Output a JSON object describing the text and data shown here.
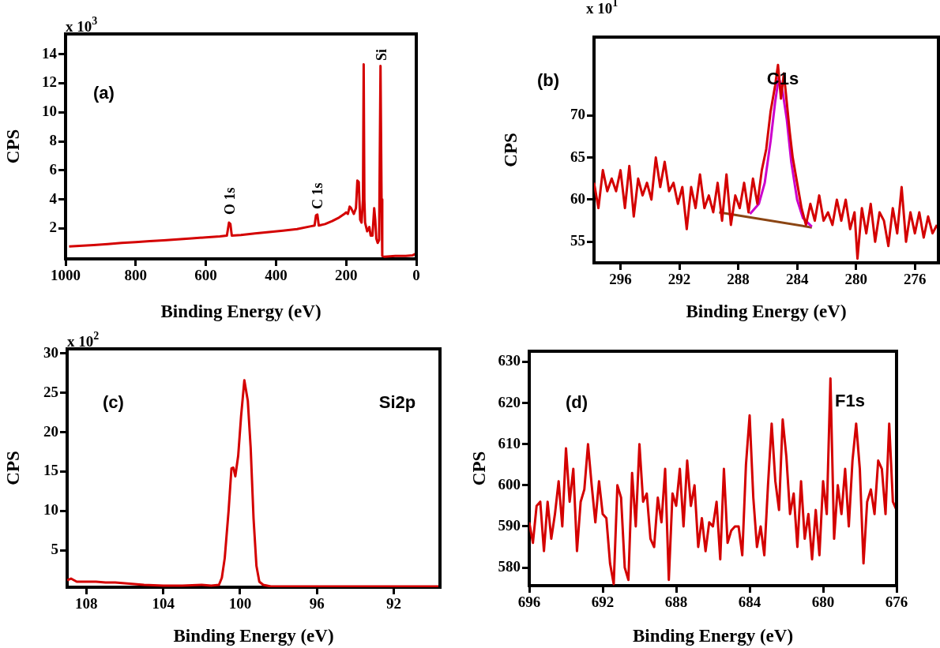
{
  "chart_data": [
    {
      "type": "line",
      "xlabel": "Binding Energy (eV)",
      "ylabel": "CPS",
      "xlim": [
        1000,
        0
      ],
      "xticks": [
        1000,
        800,
        600,
        400,
        200,
        0
      ],
      "ylim": [
        -0.1,
        15.4
      ],
      "yticks": [
        2,
        4,
        6,
        8,
        10,
        12,
        14
      ],
      "grid": false,
      "annotations": [
        "(a)",
        "x 10$^{3}$",
        "O 1s",
        "C 1s",
        "Si"
      ],
      "series": [
        {
          "color": "#d40000",
          "x": [
            990,
            960,
            920,
            880,
            840,
            800,
            760,
            720,
            680,
            640,
            600,
            560,
            540,
            534,
            530,
            526,
            500,
            460,
            420,
            380,
            340,
            300,
            290,
            286,
            282,
            278,
            260,
            240,
            220,
            205,
            200,
            195,
            190,
            186,
            182,
            178,
            172,
            168,
            164,
            160,
            156,
            152,
            150,
            148,
            146,
            140,
            134,
            130,
            125,
            120,
            117,
            114,
            110,
            106,
            102,
            99,
            97,
            90,
            60,
            30,
            10,
            2,
            0
          ],
          "values": [
            0.75,
            0.8,
            0.85,
            0.92,
            1.0,
            1.05,
            1.12,
            1.18,
            1.25,
            1.32,
            1.38,
            1.45,
            1.5,
            2.4,
            2.3,
            1.5,
            1.55,
            1.65,
            1.75,
            1.85,
            1.95,
            2.15,
            2.2,
            2.9,
            2.95,
            2.2,
            2.3,
            2.5,
            2.75,
            3.0,
            3.1,
            3.0,
            3.5,
            3.4,
            3.2,
            3.0,
            3.4,
            5.3,
            5.2,
            2.6,
            2.4,
            4,
            13.3,
            4,
            2.4,
            1.8,
            2.1,
            1.5,
            1.5,
            3.4,
            2.6,
            1.3,
            1.0,
            1.2,
            13.2,
            4,
            0.1,
            0.05,
            0.1,
            0.1,
            0.15,
            0.25,
            0.2
          ]
        }
      ]
    },
    {
      "type": "line",
      "xlabel": "Binding Energy (eV)",
      "ylabel": "CPS",
      "xlim": [
        297.8,
        274.4
      ],
      "xticks": [
        296,
        292,
        288,
        284,
        280,
        276
      ],
      "ylim": [
        52.5,
        79.3
      ],
      "yticks": [
        55,
        60,
        65,
        70
      ],
      "grid": false,
      "annotations": [
        "(b)",
        "x 10$^{1}$",
        "C1s"
      ],
      "series": [
        {
          "color": "#d40000",
          "x": [
            297.8,
            297.5,
            297.2,
            296.9,
            296.6,
            296.3,
            296.0,
            295.7,
            295.4,
            295.1,
            294.8,
            294.5,
            294.2,
            293.9,
            293.6,
            293.3,
            293.0,
            292.7,
            292.4,
            292.1,
            291.8,
            291.5,
            291.2,
            290.9,
            290.6,
            290.3,
            290.0,
            289.7,
            289.4,
            289.1,
            288.8,
            288.5,
            288.2,
            287.9,
            287.6,
            287.3,
            287.0,
            286.7,
            286.4,
            286.1,
            285.8,
            285.5,
            285.3,
            285.1,
            284.9,
            284.7,
            284.5,
            284.3,
            284.0,
            283.7,
            283.4,
            283.1,
            282.8,
            282.5,
            282.2,
            281.9,
            281.6,
            281.3,
            281.0,
            280.7,
            280.4,
            280.1,
            279.9,
            279.6,
            279.3,
            279.0,
            278.7,
            278.4,
            278.1,
            277.8,
            277.5,
            277.2,
            276.9,
            276.6,
            276.3,
            276.0,
            275.7,
            275.4,
            275.1,
            274.8,
            274.5
          ],
          "values": [
            62,
            59,
            63.5,
            61,
            62.5,
            61,
            63.5,
            59,
            64,
            58,
            62.5,
            60.5,
            62,
            60,
            65,
            61.5,
            64.5,
            61,
            62,
            59.5,
            61.5,
            56.5,
            61.5,
            59,
            63,
            59,
            60.5,
            58.5,
            62,
            57.5,
            63,
            57,
            60.5,
            59,
            62,
            58.5,
            62.5,
            59.5,
            63.5,
            66,
            70.5,
            73.5,
            76,
            72,
            75,
            71.5,
            68,
            65,
            62,
            59,
            57,
            59.5,
            57.5,
            60.5,
            57.5,
            58.5,
            57,
            60,
            57.5,
            60,
            56.5,
            58.5,
            53,
            59,
            56,
            59.5,
            55,
            58.5,
            57.5,
            54.5,
            59,
            56,
            61.5,
            55,
            58.5,
            56,
            58.5,
            55.5,
            58,
            56,
            57
          ]
        },
        {
          "color": "#cc00cc",
          "x": [
            287.2,
            286.6,
            286.2,
            285.8,
            285.5,
            285.25,
            285.0,
            284.7,
            284.4,
            284.0,
            283.6,
            283.0
          ],
          "values": [
            58.3,
            59.5,
            62,
            67,
            71.5,
            74.5,
            73,
            69.5,
            64.5,
            60,
            57.8,
            56.8
          ]
        },
        {
          "color": "#8b4513",
          "x": [
            289.3,
            283.0
          ],
          "values": [
            58.5,
            56.7
          ]
        }
      ]
    },
    {
      "type": "line",
      "xlabel": "Binding Energy (eV)",
      "ylabel": "CPS",
      "xlim": [
        109,
        89.6
      ],
      "xticks": [
        108,
        104,
        100,
        96,
        92
      ],
      "ylim": [
        0.3,
        30.6
      ],
      "yticks": [
        5,
        10,
        15,
        20,
        25,
        30
      ],
      "grid": false,
      "annotations": [
        "(c)",
        "x 10$^{2}$",
        "Si2p"
      ],
      "series": [
        {
          "color": "#d40000",
          "x": [
            109,
            108.8,
            108.5,
            108,
            107.5,
            107,
            106.5,
            106,
            105.5,
            105,
            104,
            103,
            102,
            101.5,
            101.1,
            100.95,
            100.8,
            100.6,
            100.45,
            100.35,
            100.25,
            100.1,
            99.95,
            99.78,
            99.6,
            99.45,
            99.3,
            99.15,
            99.0,
            98.8,
            98.4,
            97.5,
            96,
            94,
            92,
            90.5,
            89.6
          ],
          "values": [
            1.2,
            1.4,
            1.0,
            1.0,
            1.0,
            0.9,
            0.9,
            0.8,
            0.7,
            0.6,
            0.5,
            0.5,
            0.6,
            0.5,
            0.6,
            1.5,
            4,
            10,
            15.4,
            15.5,
            14.4,
            17,
            22,
            26.6,
            24,
            18,
            9,
            3,
            1.0,
            0.6,
            0.4,
            0.4,
            0.4,
            0.4,
            0.4,
            0.4,
            0.4
          ]
        }
      ]
    },
    {
      "type": "line",
      "xlabel": "Binding Energy (eV)",
      "ylabel": "CPS",
      "xlim": [
        696,
        676
      ],
      "xticks": [
        696,
        692,
        688,
        684,
        680,
        676
      ],
      "ylim": [
        575.6,
        632.6
      ],
      "yticks": [
        580,
        590,
        600,
        610,
        620,
        630
      ],
      "grid": false,
      "annotations": [
        "(d)",
        "F1s"
      ],
      "series": [
        {
          "color": "#d40000",
          "x": [
            696.0,
            695.8,
            695.6,
            695.4,
            695.2,
            695.0,
            694.8,
            694.6,
            694.4,
            694.2,
            694.0,
            693.8,
            693.6,
            693.4,
            693.2,
            693.0,
            692.8,
            692.6,
            692.4,
            692.2,
            692.0,
            691.8,
            691.6,
            691.4,
            691.2,
            691.0,
            690.8,
            690.6,
            690.4,
            690.2,
            690.0,
            689.8,
            689.6,
            689.4,
            689.2,
            689.0,
            688.8,
            688.6,
            688.4,
            688.2,
            688.0,
            687.8,
            687.6,
            687.4,
            687.2,
            687.0,
            686.8,
            686.6,
            686.4,
            686.2,
            686.0,
            685.8,
            685.6,
            685.4,
            685.2,
            685.0,
            684.8,
            684.6,
            684.4,
            684.2,
            684.0,
            683.8,
            683.6,
            683.4,
            683.2,
            683.0,
            682.8,
            682.6,
            682.4,
            682.2,
            682.0,
            681.8,
            681.6,
            681.4,
            681.2,
            681.0,
            680.8,
            680.6,
            680.4,
            680.2,
            680.0,
            679.8,
            679.6,
            679.4,
            679.2,
            679.0,
            678.8,
            678.6,
            678.4,
            678.2,
            678.0,
            677.8,
            677.6,
            677.4,
            677.2,
            677.0,
            676.8,
            676.6,
            676.4,
            676.2,
            676.0
          ],
          "values": [
            591,
            586,
            595,
            596,
            584,
            596,
            587,
            593,
            601,
            590,
            609,
            596,
            604,
            584,
            596,
            599,
            610,
            600,
            591,
            601,
            593,
            592,
            581,
            576,
            600,
            597,
            580,
            577,
            603,
            590,
            610,
            596,
            598,
            587,
            585,
            597,
            591,
            604,
            577,
            598,
            595,
            604,
            590,
            606,
            595,
            600,
            585,
            592,
            584,
            591,
            590,
            596,
            582,
            604,
            586,
            589,
            590,
            590,
            583,
            605,
            617,
            597,
            585,
            590,
            583,
            600,
            615,
            601,
            594,
            616,
            607,
            593,
            598,
            585,
            601,
            587,
            593,
            582,
            594,
            583,
            601,
            593,
            626,
            587,
            600,
            593,
            604,
            590,
            606,
            615,
            604,
            581,
            596,
            599,
            593,
            606,
            604,
            593,
            615,
            596,
            594
          ]
        }
      ]
    }
  ]
}
